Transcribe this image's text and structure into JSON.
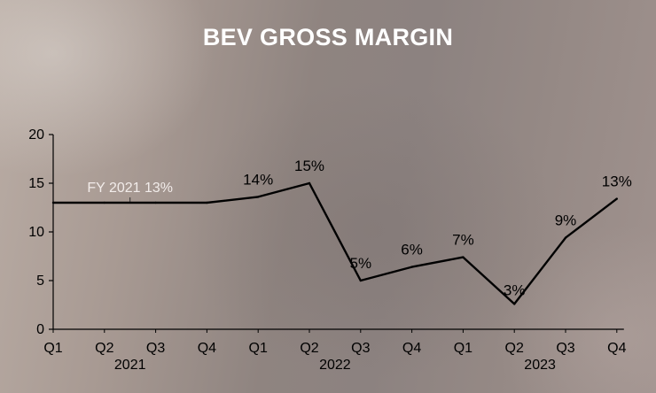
{
  "title": "BEV GROSS MARGIN",
  "chart_data": {
    "type": "line",
    "categories": [
      "Q1",
      "Q2",
      "Q3",
      "Q4",
      "Q1",
      "Q2",
      "Q3",
      "Q4",
      "Q1",
      "Q2",
      "Q3",
      "Q4"
    ],
    "year_labels": [
      {
        "label": "2021",
        "quarters": [
          0,
          3
        ]
      },
      {
        "label": "2022",
        "quarters": [
          4,
          7
        ]
      },
      {
        "label": "2023",
        "quarters": [
          8,
          11
        ]
      }
    ],
    "series": [
      {
        "values": [
          13,
          13,
          13,
          13,
          13.6,
          15,
          5,
          6.4,
          7.4,
          2.6,
          9.4,
          13.4
        ],
        "data_labels": [
          null,
          null,
          null,
          null,
          "14%",
          "15%",
          "5%",
          "6%",
          "7%",
          "3%",
          "9%",
          "13%"
        ],
        "color": "#000000"
      }
    ],
    "annotations": [
      {
        "text": "FY 2021 13%",
        "value": 13,
        "quarters": [
          0,
          3
        ]
      }
    ],
    "yticks": [
      0,
      5,
      10,
      15,
      20
    ],
    "ylim": [
      0,
      20
    ],
    "grid": false,
    "xlabel": "",
    "ylabel": ""
  }
}
